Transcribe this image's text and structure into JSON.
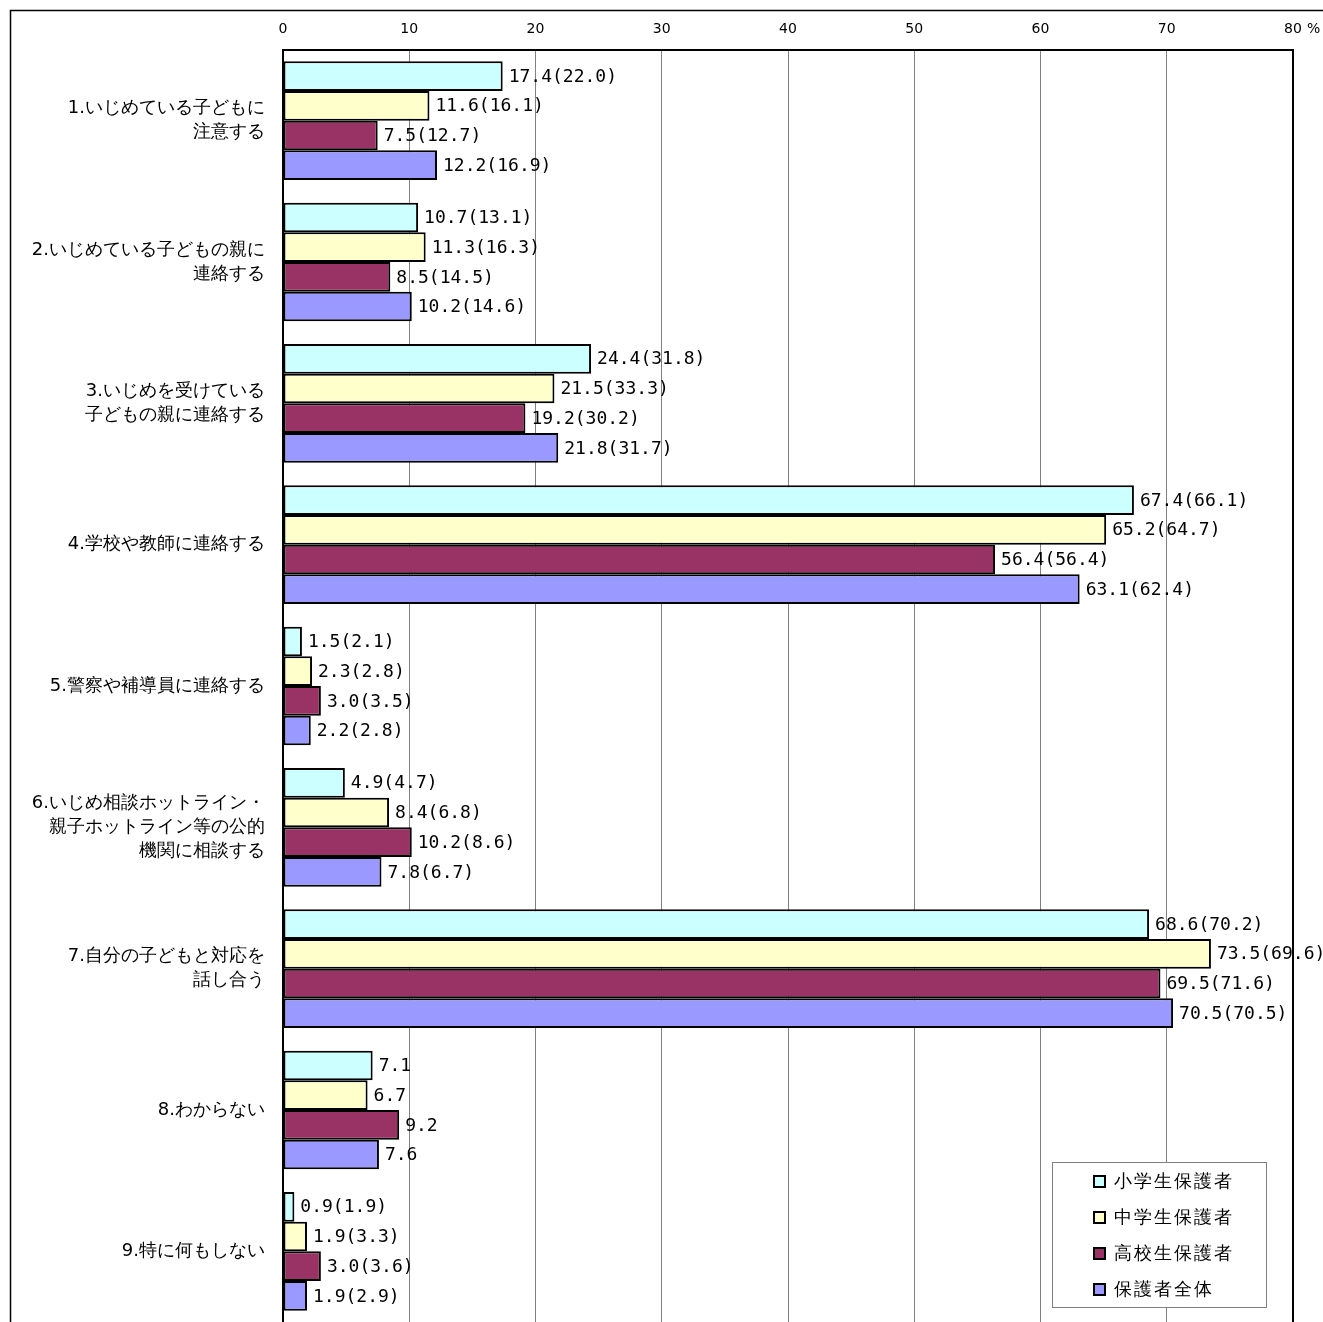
{
  "chart_data": {
    "type": "bar",
    "orientation": "horizontal",
    "xlabel": "%",
    "categories": [
      "1.いじめている子どもに注意する",
      "2.いじめている子どもの親に連絡する",
      "3.いじめを受けている子どもの親に連絡する",
      "4.学校や教師に連絡する",
      "5.警察や補導員に連絡する",
      "6.いじめ相談ホットライン・親子ホットライン等の公的機関に相談する",
      "7.自分の子どもと対応を話し合う",
      "8.わからない",
      "9.特に何もしない"
    ],
    "series": [
      {
        "name": "小学生保護者",
        "color": "#ccffff",
        "values": [
          17.4,
          10.7,
          24.4,
          67.4,
          1.5,
          4.9,
          68.6,
          7.1,
          0.9
        ],
        "value_labels": [
          "17.4(22.0)",
          "10.7(13.1)",
          "24.4(31.8)",
          "67.4(66.1)",
          "1.5(2.1)",
          "4.9(4.7)",
          "68.6(70.2)",
          "7.1",
          "0.9(1.9)"
        ]
      },
      {
        "name": "中学生保護者",
        "color": "#ffffcc",
        "values": [
          11.6,
          11.3,
          21.5,
          65.2,
          2.3,
          8.4,
          73.5,
          6.7,
          1.9
        ],
        "value_labels": [
          "11.6(16.1)",
          "11.3(16.3)",
          "21.5(33.3)",
          "65.2(64.7)",
          "2.3(2.8)",
          "8.4(6.8)",
          "73.5(69.6)",
          "6.7",
          "1.9(3.3)"
        ]
      },
      {
        "name": "高校生保護者",
        "color": "#993366",
        "values": [
          7.5,
          8.5,
          19.2,
          56.4,
          3.0,
          10.2,
          69.5,
          9.2,
          3.0
        ],
        "value_labels": [
          "7.5(12.7)",
          "8.5(14.5)",
          "19.2(30.2)",
          "56.4(56.4)",
          "3.0(3.5)",
          "10.2(8.6)",
          "69.5(71.6)",
          "9.2",
          "3.0(3.6)"
        ]
      },
      {
        "name": "保護者全体",
        "color": "#9999ff",
        "values": [
          12.2,
          10.2,
          21.8,
          63.1,
          2.2,
          7.8,
          70.5,
          7.6,
          1.9
        ],
        "value_labels": [
          "12.2(16.9)",
          "10.2(14.6)",
          "21.8(31.7)",
          "63.1(62.4)",
          "2.2(2.8)",
          "7.8(6.7)",
          "70.5(70.5)",
          "7.6",
          "1.9(2.9)"
        ]
      }
    ],
    "xlim": [
      0,
      80
    ],
    "xticks": [
      0,
      10,
      20,
      30,
      40,
      50,
      60,
      70,
      80
    ],
    "grid": "x",
    "legend": "bottom right"
  }
}
